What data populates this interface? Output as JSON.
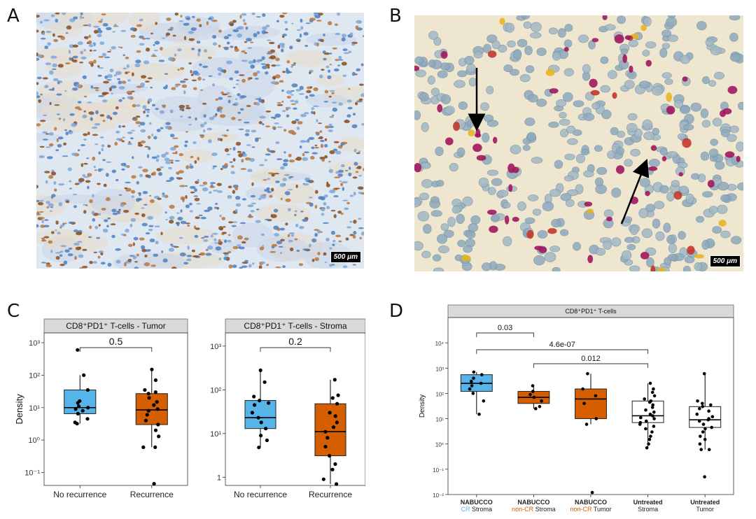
{
  "panels": {
    "A": {
      "label": "A",
      "scale_bar": "500 μm",
      "stain": "CD8/PD-1 IHC (brown/blue)"
    },
    "B": {
      "label": "B",
      "scale_bar": "500 μm",
      "stain": "multiplex IHC (red/yellow/blue)"
    },
    "C": {
      "label": "C"
    },
    "D": {
      "label": "D"
    }
  },
  "colors": {
    "blue_box": "#56b4e9",
    "orange_box": "#d55e00",
    "white_box": "#ffffff",
    "strip_bg": "#d9d9d9",
    "cr_label": "#56b4e9",
    "noncr_label": "#d55e00"
  },
  "chart_data": [
    {
      "id": "C-tumor",
      "type": "box",
      "title": "CD8⁺PD1⁺ T-cells - Tumor",
      "ylabel": "Density",
      "yscale": "log10",
      "ylim": [
        0.04,
        2000
      ],
      "yticks": [
        {
          "v": 0.1,
          "label": "10⁻¹"
        },
        {
          "v": 1,
          "label": "10⁰"
        },
        {
          "v": 10,
          "label": "10¹"
        },
        {
          "v": 100,
          "label": "10²"
        },
        {
          "v": 1000,
          "label": "10³"
        }
      ],
      "categories": [
        "No recurrence",
        "Recurrence"
      ],
      "boxes": [
        {
          "q1": 6.5,
          "median": 10,
          "q3": 35,
          "whisker_low": 3.2,
          "whisker_high": 100,
          "color": "blue_box",
          "points": [
            3.2,
            3.5,
            4.5,
            6.5,
            8,
            9,
            10,
            11,
            14,
            16,
            35,
            100,
            600
          ]
        },
        {
          "q1": 3,
          "median": 8.5,
          "q3": 27,
          "whisker_low": 0.6,
          "whisker_high": 150,
          "color": "orange_box",
          "points": [
            0.045,
            0.6,
            0.6,
            1.3,
            2,
            3,
            4,
            6,
            8,
            9,
            12,
            15,
            20,
            27,
            30,
            35,
            70,
            150
          ]
        }
      ],
      "comparisons": [
        {
          "from": 0,
          "to": 1,
          "label": "0.5"
        }
      ]
    },
    {
      "id": "C-stroma",
      "type": "box",
      "title": "CD8⁺PD1⁺ T-cells - Stroma",
      "ylabel": "",
      "yscale": "log10",
      "ylim": [
        0.65,
        2000
      ],
      "yticks": [
        {
          "v": 1,
          "label": "1"
        },
        {
          "v": 10,
          "label": "10¹"
        },
        {
          "v": 100,
          "label": "10²"
        },
        {
          "v": 1000,
          "label": "10³"
        }
      ],
      "categories": [
        "No recurrence",
        "Recurrence"
      ],
      "boxes": [
        {
          "q1": 13,
          "median": 23,
          "q3": 57,
          "whisker_low": 4.8,
          "whisker_high": 280,
          "color": "blue_box",
          "points": [
            4.8,
            7,
            9,
            13,
            18,
            23,
            30,
            45,
            50,
            57,
            70,
            150,
            280
          ]
        },
        {
          "q1": 3.1,
          "median": 11,
          "q3": 48,
          "whisker_low": 0.7,
          "whisker_high": 170,
          "color": "orange_box",
          "points": [
            0.7,
            0.9,
            1.5,
            2,
            3.1,
            5,
            8,
            11,
            14,
            18,
            25,
            30,
            48,
            65,
            75,
            170
          ]
        }
      ],
      "comparisons": [
        {
          "from": 0,
          "to": 1,
          "label": "0.2"
        }
      ]
    },
    {
      "id": "D",
      "type": "box",
      "title": "CD8⁺PD1⁺ T-cells",
      "ylabel": "Density",
      "yscale": "log10",
      "ylim": [
        0.01,
        100000
      ],
      "yticks": [
        {
          "v": 0.01,
          "label": "10⁻²"
        },
        {
          "v": 0.1,
          "label": "10⁻¹"
        },
        {
          "v": 1,
          "label": "10⁰"
        },
        {
          "v": 10,
          "label": "10¹"
        },
        {
          "v": 100,
          "label": "10²"
        },
        {
          "v": 1000,
          "label": "10³"
        },
        {
          "v": 10000,
          "label": "10⁴"
        }
      ],
      "categories": [
        {
          "top": "NABUCCO",
          "parts": [
            {
              "t": "CR",
              "c": "cr_label"
            },
            {
              "t": " Stroma",
              "c": ""
            }
          ]
        },
        {
          "top": "NABUCCO",
          "parts": [
            {
              "t": "non-CR",
              "c": "noncr_label"
            },
            {
              "t": " Stroma",
              "c": ""
            }
          ]
        },
        {
          "top": "NABUCCO",
          "parts": [
            {
              "t": "non-CR",
              "c": "noncr_label"
            },
            {
              "t": " Tumor",
              "c": ""
            }
          ]
        },
        {
          "top": "Untreated",
          "parts": [
            {
              "t": "Stroma",
              "c": ""
            }
          ]
        },
        {
          "top": "Untreated",
          "parts": [
            {
              "t": "Tumor",
              "c": ""
            }
          ]
        }
      ],
      "boxes": [
        {
          "q1": 120,
          "median": 250,
          "q3": 550,
          "whisker_low": 15,
          "whisker_high": 700,
          "color": "blue_box",
          "points": [
            15,
            50,
            100,
            150,
            200,
            250,
            300,
            400,
            550,
            700
          ]
        },
        {
          "q1": 40,
          "median": 70,
          "q3": 120,
          "whisker_low": 25,
          "whisker_high": 200,
          "color": "orange_box",
          "points": [
            25,
            30,
            50,
            70,
            90,
            120,
            200
          ]
        },
        {
          "q1": 10,
          "median": 60,
          "q3": 150,
          "whisker_low": 6,
          "whisker_high": 600,
          "color": "orange_box",
          "points": [
            0.012,
            6,
            10,
            40,
            80,
            150,
            600
          ]
        },
        {
          "q1": 7,
          "median": 13,
          "q3": 50,
          "whisker_low": 0.7,
          "whisker_high": 250,
          "color": "white_box",
          "points": [
            0.7,
            1,
            1.5,
            2,
            3,
            4,
            5,
            6,
            7,
            8,
            10,
            11,
            13,
            15,
            18,
            22,
            28,
            35,
            45,
            50,
            60,
            80,
            110,
            150,
            250
          ]
        },
        {
          "q1": 4.5,
          "median": 9,
          "q3": 30,
          "whisker_low": 0.6,
          "whisker_high": 600,
          "color": "white_box",
          "points": [
            0.05,
            0.6,
            0.6,
            1,
            1.5,
            2,
            3,
            4,
            4.5,
            6,
            8,
            9,
            10,
            12,
            15,
            20,
            25,
            30,
            35,
            40,
            50,
            600
          ]
        }
      ],
      "comparisons": [
        {
          "from": 0,
          "to": 1,
          "label": "0.03"
        },
        {
          "from": 0,
          "to": 3,
          "label": "4.6e-07"
        },
        {
          "from": 1,
          "to": 3,
          "label": "0.012"
        }
      ]
    }
  ]
}
